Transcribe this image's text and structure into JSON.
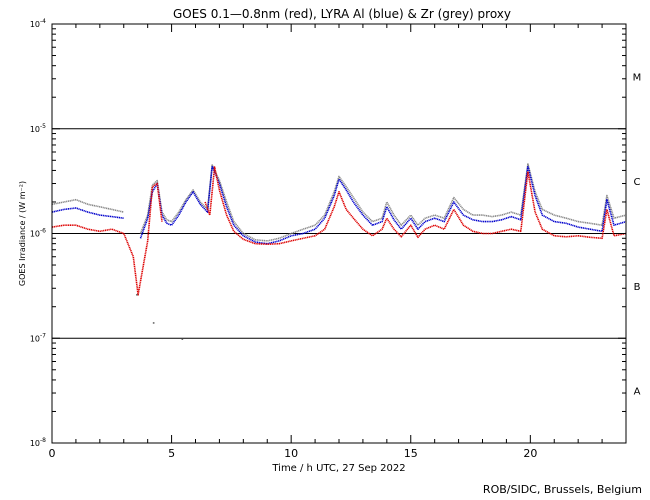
{
  "chart_data": {
    "type": "line",
    "title": "GOES 0.1—0.8nm (red), LYRA Al (blue) & Zr (grey) proxy",
    "xlabel": "Time / h UTC, 27 Sep 2022",
    "ylabel": "GOES Irradiance / (W m⁻²)",
    "xlim": [
      0,
      24
    ],
    "ylim_log10": [
      -8,
      -4
    ],
    "y_scale": "log",
    "x_ticks": [
      0,
      5,
      10,
      15,
      20
    ],
    "x_tick_labels": [
      "0",
      "5",
      "10",
      "15",
      "20"
    ],
    "y_ticks_log10": [
      -8,
      -7,
      -6,
      -5,
      -4
    ],
    "y_tick_labels": [
      {
        "base": "10",
        "exp": "-8"
      },
      {
        "base": "10",
        "exp": "-7"
      },
      {
        "base": "10",
        "exp": "-6"
      },
      {
        "base": "10",
        "exp": "-5"
      },
      {
        "base": "10",
        "exp": "-4"
      }
    ],
    "class_boundaries_log10": [
      -7,
      -6,
      -5
    ],
    "flare_classes": [
      {
        "label": "A",
        "center_log10": -7.5
      },
      {
        "label": "B",
        "center_log10": -6.5
      },
      {
        "label": "C",
        "center_log10": -5.5
      },
      {
        "label": "M",
        "center_log10": -4.5
      }
    ],
    "series": [
      {
        "name": "Zr (grey) proxy",
        "color": "#888888",
        "x": [
          0.0,
          0.5,
          1.0,
          1.5,
          2.0,
          2.5,
          3.0,
          3.7,
          4.0,
          4.2,
          4.4,
          4.6,
          4.8,
          5.0,
          5.3,
          5.6,
          5.9,
          6.2,
          6.5,
          6.7,
          7.0,
          7.3,
          7.6,
          8.0,
          8.5,
          9.0,
          9.5,
          10.0,
          10.5,
          11.0,
          11.4,
          11.8,
          12.0,
          12.3,
          12.6,
          13.0,
          13.4,
          13.8,
          14.0,
          14.3,
          14.6,
          15.0,
          15.3,
          15.6,
          16.0,
          16.4,
          16.8,
          17.2,
          17.6,
          18.0,
          18.4,
          18.8,
          19.2,
          19.6,
          19.9,
          20.2,
          20.5,
          21.0,
          21.5,
          22.0,
          22.5,
          23.0,
          23.2,
          23.5,
          24.0
        ],
        "y": [
          1.9e-06,
          2e-06,
          2.1e-06,
          1.9e-06,
          1.8e-06,
          1.7e-06,
          1.6e-06,
          1e-06,
          1.5e-06,
          2.9e-06,
          3.2e-06,
          1.6e-06,
          1.35e-06,
          1.3e-06,
          1.6e-06,
          2.1e-06,
          2.6e-06,
          2e-06,
          1.7e-06,
          4.5e-06,
          3.2e-06,
          2e-06,
          1.3e-06,
          1e-06,
          8.7e-07,
          8.5e-07,
          9e-07,
          1e-06,
          1.1e-06,
          1.2e-06,
          1.5e-06,
          2.5e-06,
          3.5e-06,
          2.8e-06,
          2.2e-06,
          1.6e-06,
          1.3e-06,
          1.4e-06,
          2e-06,
          1.5e-06,
          1.2e-06,
          1.5e-06,
          1.2e-06,
          1.4e-06,
          1.5e-06,
          1.4e-06,
          2.2e-06,
          1.7e-06,
          1.5e-06,
          1.5e-06,
          1.45e-06,
          1.5e-06,
          1.6e-06,
          1.5e-06,
          4.6e-06,
          2.5e-06,
          1.7e-06,
          1.5e-06,
          1.4e-06,
          1.3e-06,
          1.25e-06,
          1.2e-06,
          2.3e-06,
          1.4e-06,
          1.5e-06
        ]
      },
      {
        "name": "Al (blue)",
        "color": "#0000cc",
        "x": [
          0.0,
          0.5,
          1.0,
          1.5,
          2.0,
          2.5,
          3.0,
          3.7,
          4.0,
          4.2,
          4.4,
          4.6,
          4.8,
          5.0,
          5.3,
          5.6,
          5.9,
          6.2,
          6.5,
          6.7,
          7.0,
          7.3,
          7.6,
          8.0,
          8.5,
          9.0,
          9.5,
          10.0,
          10.5,
          11.0,
          11.4,
          11.8,
          12.0,
          12.3,
          12.6,
          13.0,
          13.4,
          13.8,
          14.0,
          14.3,
          14.6,
          15.0,
          15.3,
          15.6,
          16.0,
          16.4,
          16.8,
          17.2,
          17.6,
          18.0,
          18.4,
          18.8,
          19.2,
          19.6,
          19.9,
          20.2,
          20.5,
          21.0,
          21.5,
          22.0,
          22.5,
          23.0,
          23.2,
          23.5,
          24.0
        ],
        "y": [
          1.6e-06,
          1.7e-06,
          1.75e-06,
          1.6e-06,
          1.5e-06,
          1.45e-06,
          1.4e-06,
          9e-07,
          1.4e-06,
          2.5e-06,
          3e-06,
          1.5e-06,
          1.25e-06,
          1.2e-06,
          1.5e-06,
          2e-06,
          2.5e-06,
          1.9e-06,
          1.6e-06,
          4.4e-06,
          3e-06,
          1.8e-06,
          1.2e-06,
          9.5e-07,
          8.3e-07,
          8e-07,
          8.5e-07,
          9.5e-07,
          1e-06,
          1.1e-06,
          1.4e-06,
          2.3e-06,
          3.3e-06,
          2.6e-06,
          2e-06,
          1.5e-06,
          1.2e-06,
          1.3e-06,
          1.8e-06,
          1.35e-06,
          1.1e-06,
          1.4e-06,
          1.1e-06,
          1.3e-06,
          1.4e-06,
          1.3e-06,
          2e-06,
          1.5e-06,
          1.35e-06,
          1.3e-06,
          1.3e-06,
          1.35e-06,
          1.45e-06,
          1.35e-06,
          4.4e-06,
          2.3e-06,
          1.5e-06,
          1.3e-06,
          1.25e-06,
          1.15e-06,
          1.1e-06,
          1.05e-06,
          2.1e-06,
          1.2e-06,
          1.3e-06
        ]
      },
      {
        "name": "GOES 0.1—0.8nm (red)",
        "color": "#dd0000",
        "x": [
          0.0,
          0.5,
          1.0,
          1.5,
          2.0,
          2.5,
          3.0,
          3.4,
          3.6,
          4.0,
          4.2,
          4.4,
          4.6,
          6.4,
          6.6,
          6.8,
          7.0,
          7.3,
          7.6,
          8.0,
          8.5,
          9.0,
          9.5,
          10.0,
          10.5,
          11.0,
          11.4,
          11.8,
          12.0,
          12.3,
          12.6,
          13.0,
          13.4,
          13.8,
          14.0,
          14.3,
          14.6,
          15.0,
          15.3,
          15.6,
          16.0,
          16.4,
          16.8,
          17.2,
          17.6,
          18.0,
          18.4,
          18.8,
          19.2,
          19.6,
          19.9,
          20.2,
          20.5,
          21.0,
          21.5,
          22.0,
          22.5,
          23.0,
          23.2,
          23.5,
          24.0
        ],
        "y": [
          1.15e-06,
          1.2e-06,
          1.2e-06,
          1.1e-06,
          1.05e-06,
          1.1e-06,
          1e-06,
          6e-07,
          2.6e-07,
          8.5e-07,
          2.8e-06,
          3e-06,
          1.3e-06,
          2e-06,
          1.5e-06,
          4.3e-06,
          2.6e-06,
          1.5e-06,
          1.05e-06,
          8.8e-07,
          8e-07,
          7.9e-07,
          8e-07,
          8.5e-07,
          9e-07,
          9.5e-07,
          1.1e-06,
          1.8e-06,
          2.5e-06,
          1.7e-06,
          1.4e-06,
          1.1e-06,
          9.5e-07,
          1.1e-06,
          1.4e-06,
          1.1e-06,
          9.3e-07,
          1.2e-06,
          9.2e-07,
          1.1e-06,
          1.2e-06,
          1.1e-06,
          1.7e-06,
          1.2e-06,
          1.05e-06,
          1e-06,
          1e-06,
          1.05e-06,
          1.1e-06,
          1.05e-06,
          3.9e-06,
          1.6e-06,
          1.1e-06,
          9.5e-07,
          9.3e-07,
          9.5e-07,
          9.2e-07,
          9e-07,
          1.7e-06,
          9.5e-07,
          1e-06
        ]
      }
    ],
    "isolated_points": [
      {
        "x": 3.55,
        "y": 2.6e-07,
        "color": "#666666"
      },
      {
        "x": 4.25,
        "y": 1.4e-07,
        "color": "#666666"
      },
      {
        "x": 5.45,
        "y": 9.8e-08,
        "color": "#666666"
      }
    ],
    "grid": false,
    "legend": "none"
  },
  "footer": {
    "credit": "ROB/SIDC, Brussels, Belgium"
  }
}
